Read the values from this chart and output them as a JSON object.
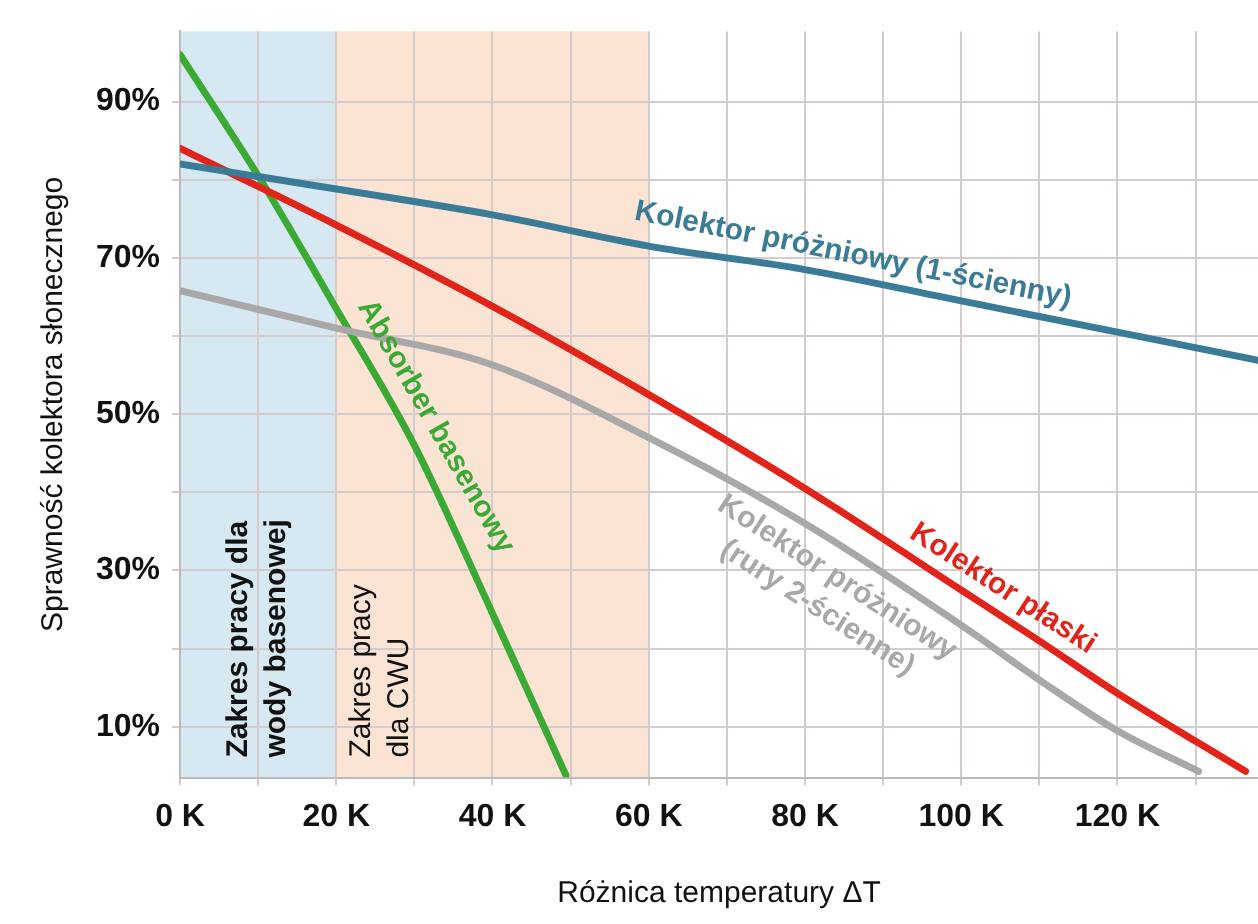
{
  "chart_data": {
    "type": "line",
    "xlabel": "Różnica temperatury ΔT",
    "ylabel": "Sprawność kolektora słonecznego",
    "xlim": [
      0,
      138
    ],
    "ylim": [
      3.5,
      99
    ],
    "xticks": [
      {
        "value": 0,
        "label": "0 K"
      },
      {
        "value": 10,
        "label": null
      },
      {
        "value": 20,
        "label": "20 K"
      },
      {
        "value": 30,
        "label": null
      },
      {
        "value": 40,
        "label": "40 K"
      },
      {
        "value": 50,
        "label": null
      },
      {
        "value": 60,
        "label": "60 K"
      },
      {
        "value": 70,
        "label": null
      },
      {
        "value": 80,
        "label": "80 K"
      },
      {
        "value": 90,
        "label": null
      },
      {
        "value": 100,
        "label": "100 K"
      },
      {
        "value": 110,
        "label": null
      },
      {
        "value": 120,
        "label": "120 K"
      },
      {
        "value": 130,
        "label": null
      }
    ],
    "yticks": [
      {
        "value": 10,
        "label": "10%"
      },
      {
        "value": 20,
        "label": null
      },
      {
        "value": 30,
        "label": "30%"
      },
      {
        "value": 40,
        "label": null
      },
      {
        "value": 50,
        "label": "50%"
      },
      {
        "value": 60,
        "label": null
      },
      {
        "value": 70,
        "label": "70%"
      },
      {
        "value": 80,
        "label": null
      },
      {
        "value": 90,
        "label": "90%"
      }
    ],
    "grid": true,
    "legend": false,
    "marker": "none",
    "line_style": "solid",
    "bands": [
      {
        "axis": "x",
        "from": 0,
        "to": 20,
        "label": "Zakres pracy dla wody basenowej",
        "color": "#d6e9f2"
      },
      {
        "axis": "x",
        "from": 20,
        "to": 60,
        "label": "Zakres pracy dla CWU",
        "color": "#fbe4d3"
      }
    ],
    "series": [
      {
        "name": "Kolektor próżniowy (1-ścienny)",
        "color": "#3a7c98",
        "x": [
          0,
          20,
          40,
          60,
          80,
          100,
          120,
          138
        ],
        "values": [
          82,
          78.8,
          75.5,
          71.5,
          68.5,
          64.5,
          60.5,
          56.9
        ]
      },
      {
        "name": "Kolektor płaski",
        "color": "#e2231a",
        "x": [
          0,
          20,
          40,
          60,
          80,
          100,
          110,
          120,
          136.4
        ],
        "values": [
          84,
          74.2,
          63.8,
          52.5,
          40.5,
          27.5,
          21,
          14.3,
          4.3
        ]
      },
      {
        "name": "Kolektor próżniowy (rury 2-ścienne)",
        "color": "#a8a8a8",
        "x": [
          0,
          20,
          40,
          60,
          80,
          100,
          110,
          120,
          130.4
        ],
        "values": [
          65.8,
          61,
          56.3,
          47,
          36,
          23,
          16,
          9.5,
          4.3
        ]
      },
      {
        "name": "Absorber basenowy",
        "color": "#3aaa35",
        "x": [
          0,
          10,
          20,
          30,
          40,
          49.4
        ],
        "values": [
          96,
          80.5,
          63.5,
          46,
          24.5,
          3.8
        ]
      }
    ]
  }
}
